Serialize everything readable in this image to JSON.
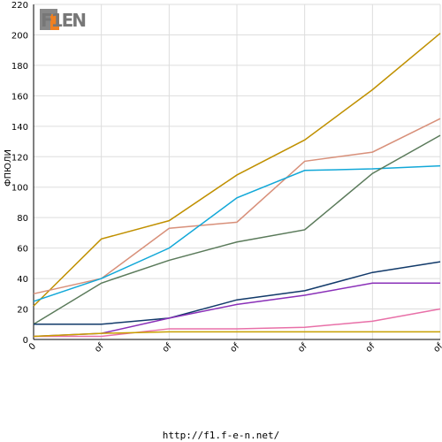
{
  "logo": "F1EN",
  "chart_data": {
    "type": "line",
    "ylabel": "ФПЮЛИ",
    "footer": "http://f1.f-e-n.net/",
    "categories": [
      "0",
      "of",
      "of",
      "of",
      "of",
      "of",
      "of"
    ],
    "ylim": [
      0,
      220
    ],
    "yticks": [
      0,
      20,
      40,
      60,
      80,
      100,
      120,
      140,
      160,
      180,
      200,
      220
    ],
    "grid": true,
    "series": [
      {
        "color": "#c09000",
        "values": [
          22,
          66,
          78,
          108,
          131,
          164,
          201
        ]
      },
      {
        "color": "#d8907a",
        "values": [
          30,
          40,
          73,
          77,
          117,
          123,
          145
        ]
      },
      {
        "color": "#12a8d8",
        "values": [
          25,
          40,
          60,
          93,
          111,
          112,
          114
        ]
      },
      {
        "color": "#5a7a5a",
        "values": [
          10,
          37,
          52,
          64,
          72,
          109,
          134
        ]
      },
      {
        "color": "#123a6a",
        "values": [
          10,
          10,
          14,
          26,
          32,
          44,
          51
        ]
      },
      {
        "color": "#8a30b8",
        "values": [
          2,
          4,
          14,
          23,
          29,
          37,
          37
        ]
      },
      {
        "color": "#e870a8",
        "values": [
          2,
          2,
          7,
          7,
          8,
          12,
          20
        ]
      },
      {
        "color": "#c8a000",
        "values": [
          2,
          4,
          5,
          5,
          5,
          5,
          5
        ]
      }
    ]
  }
}
